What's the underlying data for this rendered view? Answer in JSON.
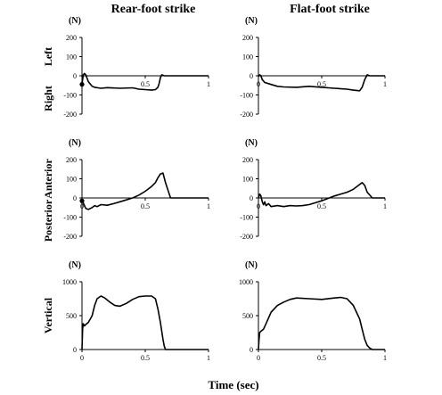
{
  "figure": {
    "column_titles": [
      "Rear-foot strike",
      "Flat-foot strike"
    ],
    "xlabel": "Time (sec)"
  },
  "chart_data": [
    {
      "type": "line",
      "id": "ml-rear",
      "row": 0,
      "col": 0,
      "unit": "(N)",
      "label_top": "Left",
      "label_bottom": "Right",
      "yticks": [
        200,
        100,
        0,
        -100,
        -200
      ],
      "ylim": [
        -200,
        200
      ],
      "xticks": [
        "0",
        "0.5",
        "1"
      ],
      "xlim": [
        0,
        1
      ],
      "x": [
        0,
        0.01,
        0.02,
        0.03,
        0.05,
        0.08,
        0.1,
        0.15,
        0.2,
        0.3,
        0.4,
        0.45,
        0.5,
        0.55,
        0.58,
        0.6,
        0.61,
        0.62,
        0.63,
        0.65,
        0.7,
        0.8,
        1.0
      ],
      "y": [
        -45,
        5,
        12,
        5,
        -30,
        -55,
        -60,
        -65,
        -62,
        -65,
        -63,
        -70,
        -72,
        -75,
        -72,
        -60,
        -40,
        -10,
        5,
        0,
        0,
        0,
        0
      ],
      "marker_at": [
        0,
        -45
      ]
    },
    {
      "type": "line",
      "id": "ml-flat",
      "row": 0,
      "col": 1,
      "unit": "(N)",
      "label_top": "",
      "label_bottom": "",
      "yticks": [
        200,
        100,
        0,
        -100,
        -200
      ],
      "ylim": [
        -200,
        200
      ],
      "xticks": [
        "0",
        "0.5",
        "1"
      ],
      "xlim": [
        0,
        1
      ],
      "x": [
        0,
        0.01,
        0.02,
        0.03,
        0.05,
        0.1,
        0.15,
        0.2,
        0.3,
        0.4,
        0.5,
        0.6,
        0.7,
        0.75,
        0.8,
        0.82,
        0.84,
        0.86,
        0.88,
        0.9,
        1.0
      ],
      "y": [
        -5,
        5,
        0,
        -20,
        -35,
        -45,
        -55,
        -58,
        -60,
        -55,
        -60,
        -65,
        -70,
        -75,
        -78,
        -60,
        -20,
        5,
        0,
        0,
        0
      ],
      "marker_at": null
    },
    {
      "type": "line",
      "id": "ap-rear",
      "row": 1,
      "col": 0,
      "unit": "(N)",
      "label_top": "Anterior",
      "label_bottom": "Posterior",
      "yticks": [
        200,
        100,
        0,
        -100,
        -200
      ],
      "ylim": [
        -200,
        200
      ],
      "xticks": [
        "0",
        "0.5",
        "1"
      ],
      "xlim": [
        0,
        1
      ],
      "x": [
        0,
        0.01,
        0.02,
        0.03,
        0.05,
        0.08,
        0.1,
        0.12,
        0.15,
        0.2,
        0.25,
        0.3,
        0.35,
        0.4,
        0.45,
        0.5,
        0.55,
        0.58,
        0.6,
        0.62,
        0.64,
        0.66,
        0.7,
        1.0
      ],
      "y": [
        -15,
        -25,
        -40,
        -55,
        -60,
        -50,
        -40,
        -45,
        -35,
        -38,
        -30,
        -20,
        -10,
        0,
        15,
        35,
        60,
        80,
        105,
        125,
        130,
        80,
        0,
        0
      ],
      "marker_at": [
        0,
        -15
      ]
    },
    {
      "type": "line",
      "id": "ap-flat",
      "row": 1,
      "col": 1,
      "unit": "(N)",
      "label_top": "",
      "label_bottom": "",
      "yticks": [
        200,
        100,
        0,
        -100,
        -200
      ],
      "ylim": [
        -200,
        200
      ],
      "xticks": [
        "0",
        "0.5",
        "1"
      ],
      "xlim": [
        0,
        1
      ],
      "x": [
        0,
        0.01,
        0.02,
        0.03,
        0.04,
        0.05,
        0.06,
        0.08,
        0.1,
        0.15,
        0.2,
        0.25,
        0.3,
        0.35,
        0.4,
        0.45,
        0.5,
        0.6,
        0.7,
        0.75,
        0.8,
        0.82,
        0.84,
        0.86,
        0.9,
        1.0
      ],
      "y": [
        0,
        20,
        10,
        -20,
        -35,
        -20,
        -40,
        -30,
        -45,
        -40,
        -45,
        -40,
        -42,
        -40,
        -35,
        -25,
        -15,
        10,
        30,
        45,
        70,
        80,
        65,
        30,
        0,
        0
      ],
      "marker_at": null
    },
    {
      "type": "line",
      "id": "v-rear",
      "row": 2,
      "col": 0,
      "unit": "(N)",
      "label_top": "",
      "label_bottom": "",
      "label_mid": "Vertical",
      "yticks": [
        1000,
        500,
        0
      ],
      "ylim": [
        0,
        1000
      ],
      "xticks": [
        "0",
        "0.5",
        "1"
      ],
      "xlim": [
        0,
        1
      ],
      "x": [
        0,
        0.005,
        0.01,
        0.02,
        0.03,
        0.05,
        0.08,
        0.1,
        0.12,
        0.15,
        0.18,
        0.22,
        0.26,
        0.3,
        0.35,
        0.4,
        0.45,
        0.5,
        0.55,
        0.58,
        0.6,
        0.62,
        0.64,
        0.65,
        0.66,
        0.7,
        1.0
      ],
      "y": [
        0,
        300,
        380,
        350,
        370,
        400,
        500,
        650,
        750,
        790,
        760,
        700,
        650,
        640,
        680,
        740,
        780,
        790,
        790,
        750,
        600,
        400,
        150,
        50,
        0,
        0,
        0
      ],
      "marker_at": null
    },
    {
      "type": "line",
      "id": "v-flat",
      "row": 2,
      "col": 1,
      "unit": "(N)",
      "label_top": "",
      "label_bottom": "",
      "yticks": [
        1000,
        500,
        0
      ],
      "ylim": [
        0,
        1000
      ],
      "xticks": [
        "0",
        "0.5",
        "1"
      ],
      "xlim": [
        0,
        1
      ],
      "x": [
        0,
        0.005,
        0.01,
        0.02,
        0.04,
        0.06,
        0.1,
        0.15,
        0.2,
        0.25,
        0.3,
        0.4,
        0.5,
        0.6,
        0.65,
        0.7,
        0.75,
        0.8,
        0.82,
        0.84,
        0.86,
        0.88,
        0.9,
        1.0
      ],
      "y": [
        0,
        150,
        250,
        270,
        300,
        380,
        550,
        650,
        700,
        740,
        760,
        750,
        740,
        760,
        770,
        750,
        650,
        450,
        300,
        150,
        60,
        20,
        0,
        0
      ],
      "marker_at": null
    }
  ]
}
